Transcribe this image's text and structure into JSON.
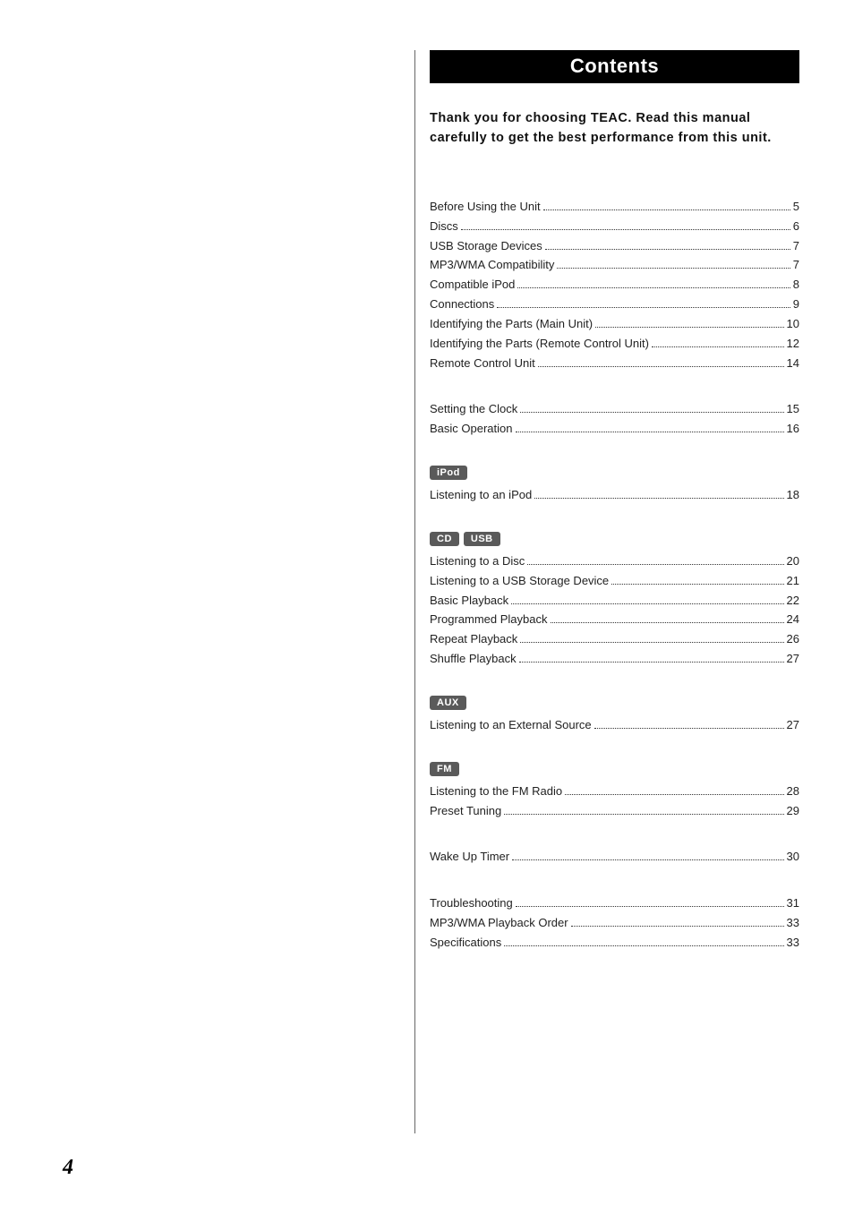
{
  "title": "Contents",
  "intro": "Thank you for choosing TEAC. Read this manual carefully to get the best performance from this unit.",
  "page_number": "4",
  "tags": {
    "ipod": "iPod",
    "cd": "CD",
    "usb": "USB",
    "aux": "AUX",
    "fm": "FM"
  },
  "sections": {
    "general": [
      {
        "label": "Before Using the Unit",
        "page": "5"
      },
      {
        "label": "Discs",
        "page": "6"
      },
      {
        "label": "USB Storage Devices",
        "page": "7"
      },
      {
        "label": "MP3/WMA Compatibility",
        "page": "7"
      },
      {
        "label": "Compatible iPod",
        "page": "8"
      },
      {
        "label": "Connections",
        "page": "9"
      },
      {
        "label": "Identifying the Parts (Main Unit)",
        "page": "10"
      },
      {
        "label": "Identifying the Parts (Remote Control Unit)",
        "page": "12"
      },
      {
        "label": "Remote Control Unit",
        "page": "14"
      }
    ],
    "setup": [
      {
        "label": "Setting the Clock",
        "page": "15"
      },
      {
        "label": "Basic Operation",
        "page": "16"
      }
    ],
    "ipod": [
      {
        "label": "Listening to an iPod",
        "page": "18"
      }
    ],
    "cd_usb": [
      {
        "label": "Listening to a Disc",
        "page": "20"
      },
      {
        "label": "Listening to a USB Storage Device",
        "page": "21"
      },
      {
        "label": "Basic Playback",
        "page": "22"
      },
      {
        "label": "Programmed Playback",
        "page": "24"
      },
      {
        "label": "Repeat Playback",
        "page": "26"
      },
      {
        "label": "Shuffle Playback",
        "page": "27"
      }
    ],
    "aux": [
      {
        "label": "Listening to an External Source",
        "page": "27"
      }
    ],
    "fm": [
      {
        "label": "Listening to the FM Radio",
        "page": "28"
      },
      {
        "label": "Preset Tuning",
        "page": "29"
      }
    ],
    "timer": [
      {
        "label": "Wake Up Timer",
        "page": "30"
      }
    ],
    "appendix": [
      {
        "label": "Troubleshooting",
        "page": "31"
      },
      {
        "label": "MP3/WMA Playback Order",
        "page": "33"
      },
      {
        "label": "Specifications",
        "page": "33"
      }
    ]
  }
}
